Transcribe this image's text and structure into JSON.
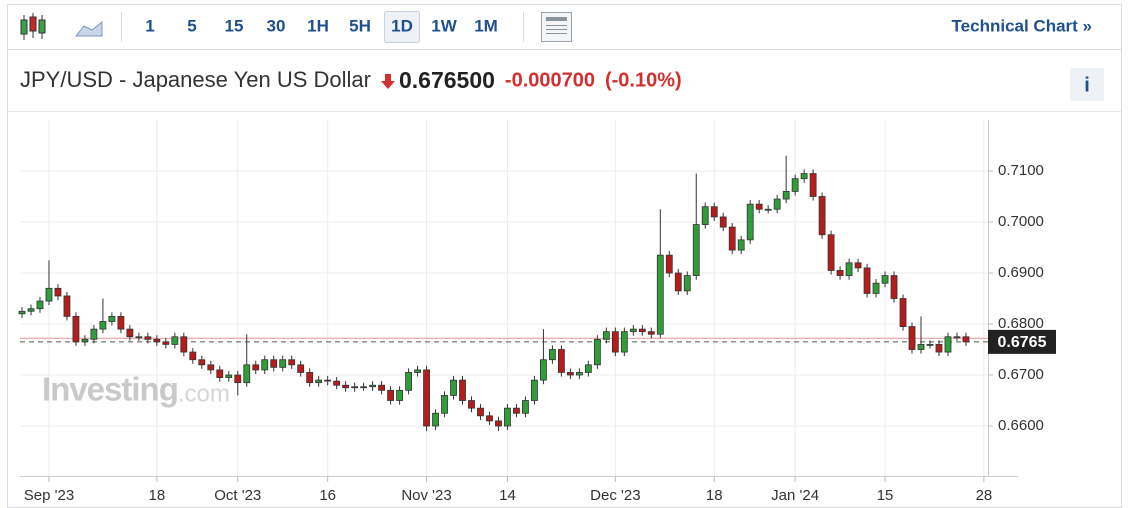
{
  "toolbar": {
    "intervals": [
      "1",
      "5",
      "15",
      "30",
      "1H",
      "5H",
      "1D",
      "1W",
      "1M"
    ],
    "selected_index": 6,
    "link": "Technical Chart »"
  },
  "header": {
    "title": "JPY/USD - Japanese Yen US Dollar",
    "price": "0.676500",
    "change": "-0.000700",
    "change_percent": "(-0.10%)",
    "info": "i"
  },
  "chart_data": {
    "type": "candlestick",
    "watermark": "Investing",
    "watermark_suffix": ".com",
    "up_color": "#2f9d3a",
    "down_color": "#b71c1c",
    "last_value": 0.6765,
    "reference_line": 0.6772,
    "ylim": [
      0.6502,
      0.72
    ],
    "yticks": [
      {
        "value": 0.66,
        "label": "0.6600"
      },
      {
        "value": 0.67,
        "label": "0.6700"
      },
      {
        "value": 0.68,
        "label": "0.6800"
      },
      {
        "value": 0.69,
        "label": "0.6900"
      },
      {
        "value": 0.7,
        "label": "0.7000"
      },
      {
        "value": 0.71,
        "label": "0.7100"
      }
    ],
    "grid": true,
    "categories": [
      null,
      null,
      null,
      "Sep '23",
      null,
      null,
      null,
      null,
      null,
      null,
      null,
      null,
      null,
      null,
      null,
      "18",
      null,
      null,
      null,
      null,
      null,
      null,
      null,
      null,
      "Oct '23",
      null,
      null,
      null,
      null,
      null,
      null,
      null,
      null,
      null,
      "16",
      null,
      null,
      null,
      null,
      null,
      null,
      null,
      null,
      null,
      null,
      "Nov '23",
      null,
      null,
      null,
      null,
      null,
      null,
      null,
      null,
      "14",
      null,
      null,
      null,
      null,
      null,
      null,
      null,
      null,
      null,
      null,
      null,
      "Dec '23",
      null,
      null,
      null,
      null,
      null,
      null,
      null,
      null,
      null,
      null,
      "18",
      null,
      null,
      null,
      null,
      null,
      null,
      null,
      null,
      "Jan '24",
      null,
      null,
      null,
      null,
      null,
      null,
      null,
      null,
      null,
      "15",
      null,
      null,
      null,
      null,
      null,
      null,
      null,
      null,
      null,
      null,
      "28"
    ],
    "open": [
      0.682,
      0.6825,
      0.683,
      0.6845,
      0.687,
      0.6855,
      0.6815,
      0.6765,
      0.677,
      0.679,
      0.6805,
      0.6815,
      0.679,
      0.6775,
      0.6775,
      0.677,
      0.6765,
      0.676,
      0.6775,
      0.6745,
      0.673,
      0.672,
      0.671,
      0.6695,
      0.67,
      0.6685,
      0.672,
      0.671,
      0.673,
      0.6715,
      0.673,
      0.672,
      0.6705,
      0.6685,
      0.669,
      0.6688,
      0.668,
      0.6675,
      0.6677,
      0.6677,
      0.668,
      0.667,
      0.665,
      0.667,
      0.6705,
      0.671,
      0.66,
      0.6625,
      0.666,
      0.669,
      0.665,
      0.6635,
      0.662,
      0.661,
      0.66,
      0.6635,
      0.6625,
      0.665,
      0.669,
      0.673,
      0.675,
      0.6705,
      0.67,
      0.6705,
      0.672,
      0.677,
      0.6785,
      0.6745,
      0.6785,
      0.679,
      0.6785,
      0.678,
      0.6935,
      0.69,
      0.6865,
      0.6895,
      0.6995,
      0.703,
      0.701,
      0.699,
      0.6945,
      0.6965,
      0.7035,
      0.7025,
      0.7025,
      0.7045,
      0.706,
      0.7085,
      0.7095,
      0.705,
      0.6975,
      0.6905,
      0.6895,
      0.692,
      0.691,
      0.686,
      0.688,
      0.6895,
      0.685,
      0.6795,
      0.675,
      0.676,
      0.676,
      0.6745,
      0.6775,
      0.6775,
      null,
      null
    ],
    "high": [
      0.6833,
      0.6838,
      0.6853,
      0.6925,
      0.6878,
      0.6863,
      0.6823,
      0.6778,
      0.6798,
      0.685,
      0.6823,
      0.6823,
      0.6798,
      0.6783,
      0.6783,
      0.6778,
      0.6773,
      0.6783,
      0.6783,
      0.6753,
      0.6738,
      0.6728,
      0.6718,
      0.6708,
      0.6708,
      0.678,
      0.6728,
      0.6738,
      0.6738,
      0.6738,
      0.6738,
      0.6728,
      0.6713,
      0.6698,
      0.6698,
      0.6696,
      0.6688,
      0.6685,
      0.6685,
      0.6688,
      0.6688,
      0.6678,
      0.6678,
      0.6713,
      0.6718,
      0.6718,
      0.6633,
      0.6668,
      0.6698,
      0.6698,
      0.6658,
      0.6643,
      0.6628,
      0.6618,
      0.6643,
      0.6643,
      0.6658,
      0.6698,
      0.679,
      0.6758,
      0.6758,
      0.6713,
      0.6713,
      0.6728,
      0.6778,
      0.6793,
      0.6793,
      0.6793,
      0.6798,
      0.6798,
      0.6793,
      0.7025,
      0.6943,
      0.6908,
      0.6903,
      0.7095,
      0.7038,
      0.7038,
      0.7018,
      0.6998,
      0.6973,
      0.7043,
      0.7043,
      0.7033,
      0.7053,
      0.713,
      0.7093,
      0.7103,
      0.7103,
      0.7058,
      0.6983,
      0.6913,
      0.6928,
      0.6928,
      0.6918,
      0.6888,
      0.6903,
      0.6903,
      0.6858,
      0.6803,
      0.6815,
      0.6768,
      0.6768,
      0.6783,
      0.6783,
      0.6783,
      null,
      null
    ],
    "low": [
      0.6812,
      0.6817,
      0.6822,
      0.6837,
      0.6847,
      0.6807,
      0.6757,
      0.6757,
      0.6762,
      0.6782,
      0.6797,
      0.6782,
      0.6767,
      0.6767,
      0.6762,
      0.6757,
      0.6752,
      0.6752,
      0.6737,
      0.6722,
      0.6712,
      0.6702,
      0.6687,
      0.6687,
      0.666,
      0.6677,
      0.6702,
      0.6702,
      0.6707,
      0.6707,
      0.6712,
      0.6697,
      0.6677,
      0.6677,
      0.668,
      0.6672,
      0.6667,
      0.6667,
      0.6669,
      0.6669,
      0.6662,
      0.6642,
      0.6642,
      0.6662,
      0.6697,
      0.659,
      0.6592,
      0.6617,
      0.6652,
      0.6642,
      0.6627,
      0.6612,
      0.6602,
      0.659,
      0.6592,
      0.6617,
      0.6617,
      0.6642,
      0.6682,
      0.6722,
      0.6697,
      0.6692,
      0.6692,
      0.6697,
      0.6712,
      0.6762,
      0.6737,
      0.6737,
      0.6777,
      0.6777,
      0.6772,
      0.6772,
      0.6892,
      0.6857,
      0.6857,
      0.6887,
      0.6987,
      0.7002,
      0.6982,
      0.6937,
      0.6937,
      0.6957,
      0.7017,
      0.7017,
      0.7017,
      0.7037,
      0.7052,
      0.7077,
      0.7042,
      0.6967,
      0.6897,
      0.6887,
      0.6887,
      0.6902,
      0.6852,
      0.6852,
      0.6872,
      0.6842,
      0.6787,
      0.6742,
      0.6742,
      0.6752,
      0.6737,
      0.6737,
      0.6767,
      0.6757,
      null,
      null
    ],
    "close": [
      0.6825,
      0.683,
      0.6845,
      0.687,
      0.6855,
      0.6815,
      0.6765,
      0.677,
      0.679,
      0.6805,
      0.6815,
      0.679,
      0.6775,
      0.6775,
      0.677,
      0.6765,
      0.676,
      0.6775,
      0.6745,
      0.673,
      0.672,
      0.671,
      0.6695,
      0.67,
      0.6685,
      0.672,
      0.671,
      0.673,
      0.6715,
      0.673,
      0.672,
      0.6705,
      0.6685,
      0.669,
      0.6688,
      0.668,
      0.6675,
      0.6677,
      0.6677,
      0.668,
      0.667,
      0.665,
      0.667,
      0.6705,
      0.671,
      0.66,
      0.6625,
      0.666,
      0.669,
      0.665,
      0.6635,
      0.662,
      0.661,
      0.66,
      0.6635,
      0.6625,
      0.665,
      0.669,
      0.673,
      0.675,
      0.6705,
      0.67,
      0.6705,
      0.672,
      0.677,
      0.6785,
      0.6745,
      0.6785,
      0.679,
      0.6785,
      0.678,
      0.6935,
      0.69,
      0.6865,
      0.6895,
      0.6995,
      0.703,
      0.701,
      0.699,
      0.6945,
      0.6965,
      0.7035,
      0.7025,
      0.7025,
      0.7045,
      0.706,
      0.7085,
      0.7095,
      0.705,
      0.6975,
      0.6905,
      0.6895,
      0.692,
      0.691,
      0.686,
      0.688,
      0.6895,
      0.685,
      0.6795,
      0.675,
      0.676,
      0.676,
      0.6745,
      0.6775,
      0.6775,
      0.6765,
      null,
      null
    ]
  }
}
